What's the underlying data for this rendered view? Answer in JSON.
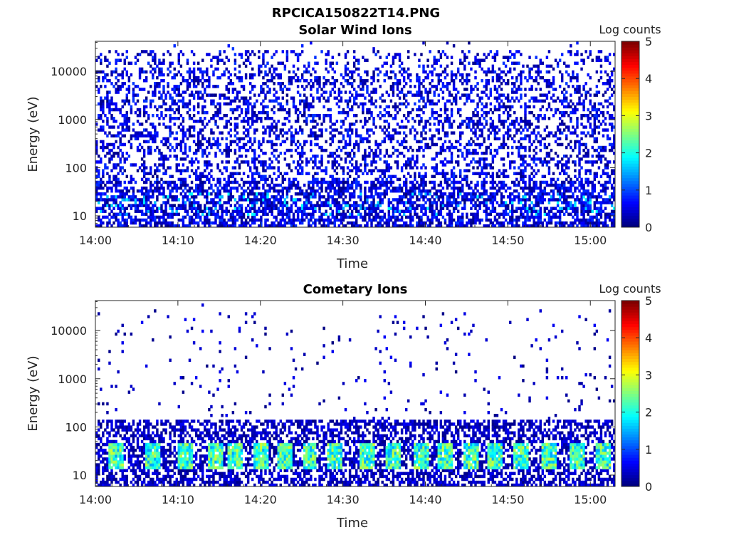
{
  "figure_title": "RPCICA150822T14.PNG",
  "chart_data": [
    {
      "type": "heatmap",
      "title": "Solar Wind Ions",
      "xlabel": "Time",
      "ylabel": "Energy (eV)",
      "x_range": [
        "14:00",
        "15:03"
      ],
      "y_range": [
        5.8,
        42000
      ],
      "y_scale": "log",
      "x_ticks": [
        "14:00",
        "14:10",
        "14:20",
        "14:30",
        "14:40",
        "14:50",
        "15:00"
      ],
      "y_ticks": [
        "10",
        "100",
        "1000",
        "10000"
      ],
      "y_tick_values": [
        10,
        100,
        1000,
        10000
      ],
      "colorbar": {
        "label": "Log counts",
        "min": 0,
        "max": 5,
        "ticks": [
          "0",
          "1",
          "2",
          "3",
          "4",
          "5"
        ]
      },
      "colormap": "jet",
      "grid": false,
      "density_profile": "dense noise counts across 10-40000 eV (log counts ~0-1), stronger bands near 10-30 eV"
    },
    {
      "type": "heatmap",
      "title": "Cometary Ions",
      "xlabel": "Time",
      "ylabel": "Energy (eV)",
      "x_range": [
        "14:00",
        "15:03"
      ],
      "y_range": [
        5.8,
        42000
      ],
      "y_scale": "log",
      "x_ticks": [
        "14:00",
        "14:10",
        "14:20",
        "14:30",
        "14:40",
        "14:50",
        "15:00"
      ],
      "y_ticks": [
        "10",
        "100",
        "1000",
        "10000"
      ],
      "y_tick_values": [
        10,
        100,
        1000,
        10000
      ],
      "colorbar": {
        "label": "Log counts",
        "min": 0,
        "max": 5,
        "ticks": [
          "0",
          "1",
          "2",
          "3",
          "4",
          "5"
        ]
      },
      "colormap": "jet",
      "grid": false,
      "density_profile": "sparse counts above 150 eV, dense below 150 eV with bursts up to log counts ~3 around 15-40 eV",
      "bursts_minutes": [
        2.5,
        7,
        11,
        14.5,
        17,
        20,
        23,
        26,
        29,
        33,
        36,
        39.5,
        42.5,
        45.5,
        48.5,
        51.5,
        55,
        58.5,
        61.5
      ]
    }
  ]
}
